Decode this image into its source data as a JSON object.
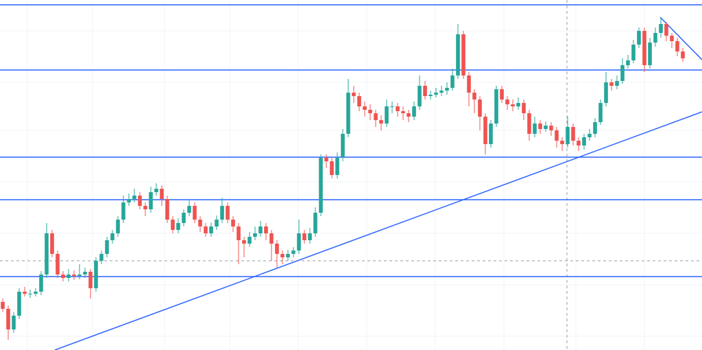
{
  "chart_data": {
    "type": "candlestick",
    "xlim": [
      -0.5,
      127.5
    ],
    "ylim": [
      0,
      510
    ],
    "up_color": "#26a69a",
    "down_color": "#ef5350",
    "line_color": "#2962ff",
    "open": [
      70,
      60,
      30,
      50,
      85,
      82,
      82,
      85,
      110,
      170,
      140,
      110,
      105,
      110,
      108,
      110,
      114,
      90,
      130,
      140,
      160,
      170,
      190,
      215,
      220,
      225,
      210,
      205,
      230,
      235,
      220,
      190,
      175,
      185,
      200,
      210,
      190,
      180,
      170,
      180,
      190,
      210,
      190,
      180,
      160,
      155,
      165,
      170,
      180,
      170,
      155,
      140,
      135,
      140,
      145,
      170,
      160,
      170,
      200,
      280,
      275,
      255,
      280,
      315,
      375,
      370,
      355,
      350,
      345,
      335,
      330,
      355,
      355,
      348,
      345,
      340,
      355,
      385,
      370,
      372,
      375,
      378,
      382,
      400,
      460,
      400,
      375,
      365,
      340,
      300,
      330,
      380,
      365,
      358,
      355,
      360,
      345,
      315,
      330,
      322,
      327,
      320,
      305,
      300,
      325,
      305,
      298,
      310,
      315,
      332,
      360,
      390,
      385,
      392,
      415,
      422,
      445,
      465,
      415,
      448,
      462,
      475,
      458,
      450,
      435
    ],
    "high": [
      75,
      65,
      55,
      90,
      92,
      88,
      90,
      115,
      185,
      175,
      145,
      115,
      118,
      116,
      125,
      120,
      118,
      135,
      145,
      165,
      175,
      195,
      225,
      228,
      235,
      230,
      215,
      238,
      243,
      240,
      225,
      195,
      192,
      205,
      218,
      215,
      195,
      185,
      186,
      196,
      222,
      215,
      195,
      185,
      165,
      172,
      180,
      188,
      185,
      175,
      160,
      145,
      146,
      150,
      190,
      175,
      178,
      208,
      285,
      285,
      280,
      288,
      322,
      395,
      385,
      375,
      362,
      358,
      350,
      342,
      365,
      362,
      360,
      355,
      350,
      362,
      400,
      392,
      378,
      382,
      385,
      390,
      410,
      475,
      465,
      405,
      380,
      370,
      345,
      335,
      385,
      385,
      370,
      365,
      368,
      365,
      350,
      340,
      335,
      333,
      332,
      325,
      310,
      340,
      330,
      310,
      315,
      322,
      338,
      365,
      405,
      395,
      400,
      425,
      430,
      452,
      470,
      470,
      455,
      470,
      485,
      478,
      462,
      455,
      440
    ],
    "low": [
      55,
      15,
      25,
      45,
      78,
      76,
      78,
      80,
      105,
      135,
      105,
      100,
      100,
      102,
      103,
      105,
      75,
      85,
      125,
      135,
      155,
      165,
      185,
      210,
      215,
      205,
      195,
      200,
      225,
      210,
      185,
      170,
      170,
      180,
      195,
      185,
      172,
      165,
      165,
      175,
      185,
      185,
      172,
      125,
      135,
      150,
      160,
      165,
      160,
      130,
      120,
      125,
      130,
      135,
      140,
      155,
      155,
      165,
      195,
      265,
      250,
      250,
      275,
      310,
      360,
      348,
      340,
      335,
      325,
      320,
      325,
      345,
      340,
      335,
      332,
      335,
      350,
      365,
      365,
      368,
      370,
      372,
      378,
      395,
      395,
      355,
      345,
      320,
      285,
      295,
      325,
      360,
      350,
      348,
      350,
      335,
      305,
      310,
      315,
      318,
      312,
      295,
      290,
      295,
      298,
      290,
      292,
      305,
      310,
      328,
      355,
      378,
      380,
      388,
      410,
      418,
      440,
      405,
      410,
      442,
      455,
      450,
      440,
      428,
      420
    ],
    "close": [
      60,
      30,
      50,
      85,
      82,
      82,
      85,
      110,
      170,
      140,
      110,
      105,
      110,
      108,
      110,
      114,
      90,
      130,
      140,
      160,
      170,
      190,
      215,
      220,
      225,
      210,
      205,
      230,
      235,
      220,
      190,
      175,
      185,
      200,
      210,
      190,
      180,
      170,
      180,
      190,
      210,
      190,
      180,
      160,
      155,
      165,
      170,
      180,
      170,
      155,
      140,
      135,
      140,
      145,
      170,
      160,
      170,
      200,
      280,
      275,
      255,
      280,
      315,
      375,
      370,
      355,
      350,
      345,
      335,
      330,
      355,
      355,
      348,
      345,
      340,
      355,
      385,
      370,
      372,
      375,
      378,
      382,
      400,
      460,
      400,
      375,
      365,
      340,
      300,
      330,
      380,
      365,
      358,
      355,
      360,
      345,
      315,
      330,
      322,
      327,
      320,
      305,
      300,
      325,
      305,
      298,
      310,
      315,
      332,
      360,
      390,
      385,
      392,
      415,
      422,
      445,
      465,
      415,
      448,
      462,
      475,
      458,
      450,
      435,
      425
    ],
    "levels": [
      503,
      408,
      281,
      219,
      107
    ],
    "trendlines": [
      {
        "x": [
          9.5,
          127.5
        ],
        "values": [
          0,
          347
        ]
      },
      {
        "x": [
          119.875,
          127.5
        ],
        "values": [
          485,
          423
        ]
      }
    ]
  }
}
